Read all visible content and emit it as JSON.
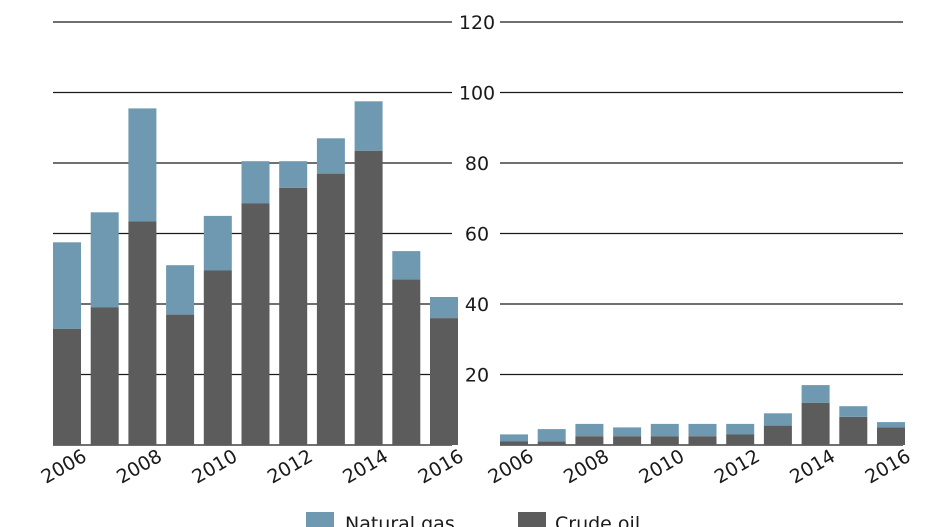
{
  "chart_data": [
    {
      "type": "bar",
      "stacked": true,
      "panel": "left",
      "categories": [
        "2006",
        "2007",
        "2008",
        "2009",
        "2010",
        "2011",
        "2012",
        "2013",
        "2014",
        "2015",
        "2016"
      ],
      "series": [
        {
          "name": "Crude oil",
          "color": "#5c5c5c",
          "values": [
            33,
            39,
            63.5,
            37,
            49.5,
            68.5,
            73,
            77,
            83.5,
            47,
            36
          ]
        },
        {
          "name": "Natural gas",
          "color": "#6f99b0",
          "values": [
            24.5,
            27,
            32,
            14,
            15.5,
            12,
            7.5,
            10,
            14,
            8,
            6
          ]
        }
      ],
      "x_tick_labels": [
        "2006",
        "2008",
        "2010",
        "2012",
        "2014",
        "2016"
      ],
      "ylim": [
        0,
        120
      ],
      "yticks": [
        20,
        40,
        60,
        80,
        100,
        120
      ],
      "grid": true
    },
    {
      "type": "bar",
      "stacked": true,
      "panel": "right",
      "categories": [
        "2006",
        "2007",
        "2008",
        "2009",
        "2010",
        "2011",
        "2012",
        "2013",
        "2014",
        "2015",
        "2016"
      ],
      "series": [
        {
          "name": "Crude oil",
          "color": "#5c5c5c",
          "values": [
            1,
            1,
            2.5,
            2.5,
            2.5,
            2.5,
            3,
            5.5,
            12,
            8,
            5
          ]
        },
        {
          "name": "Natural gas",
          "color": "#6f99b0",
          "values": [
            2,
            3.5,
            3.5,
            2.5,
            3.5,
            3.5,
            3,
            3.5,
            5,
            3,
            1.5
          ]
        }
      ],
      "x_tick_labels": [
        "2006",
        "2008",
        "2010",
        "2012",
        "2014",
        "2016"
      ],
      "ylim": [
        0,
        120
      ],
      "yticks": [
        20,
        40,
        60,
        80,
        100,
        120
      ],
      "grid": true
    }
  ],
  "legend": [
    {
      "label": "Natural gas",
      "color": "#6f99b0"
    },
    {
      "label": "Crude oil",
      "color": "#5c5c5c"
    }
  ]
}
